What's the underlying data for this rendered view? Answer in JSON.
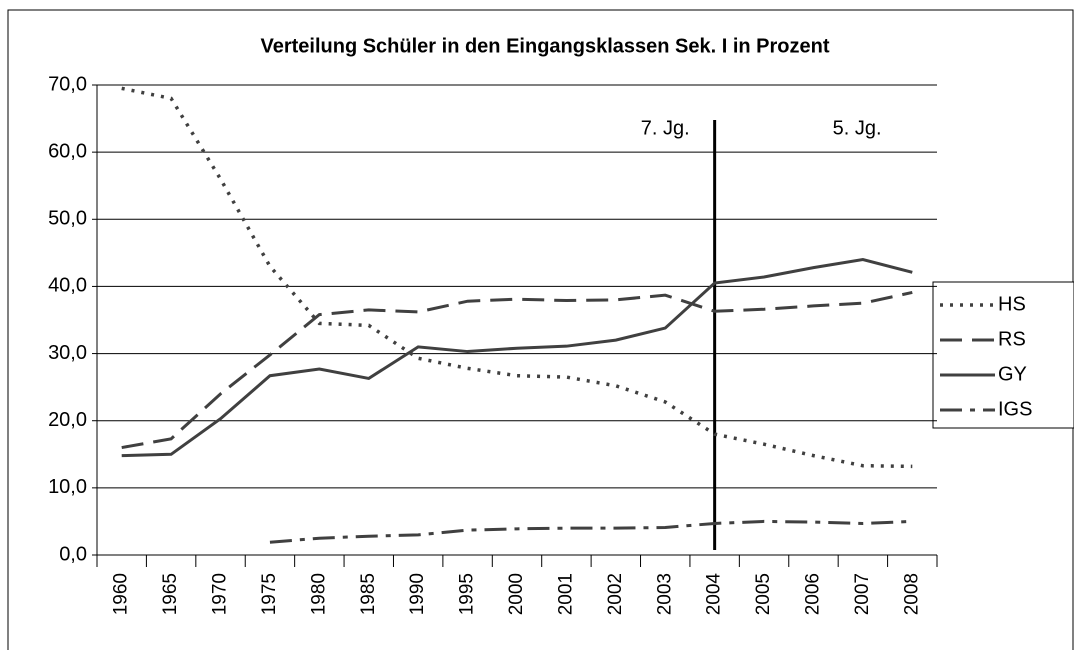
{
  "chart_data": {
    "type": "line",
    "title": "Verteilung Schüler in den Eingangsklassen Sek. I in Prozent",
    "categories": [
      "1960",
      "1965",
      "1970",
      "1975",
      "1980",
      "1985",
      "1990",
      "1995",
      "2000",
      "2001",
      "2002",
      "2003",
      "2004",
      "2005",
      "2006",
      "2007",
      "2008"
    ],
    "series": [
      {
        "name": "HS",
        "color": "#404040",
        "dash": "3,7",
        "values": [
          69.5,
          68,
          56,
          43,
          34.5,
          34.2,
          29.3,
          27.8,
          26.7,
          26.5,
          25.2,
          22.8,
          18,
          16.5,
          14.8,
          13.3,
          13.2
        ]
      },
      {
        "name": "RS",
        "color": "#404040",
        "dash": "22,10",
        "values": [
          16,
          17.3,
          24,
          29.8,
          35.8,
          36.5,
          36.2,
          37.8,
          38.1,
          37.9,
          38,
          38.7,
          36.3,
          36.6,
          37.1,
          37.5,
          39.1
        ]
      },
      {
        "name": "GY",
        "color": "#404040",
        "dash": "none",
        "values": [
          14.8,
          15,
          20.3,
          26.7,
          27.7,
          26.3,
          31,
          30.3,
          30.8,
          31.1,
          32,
          33.8,
          40.5,
          41.4,
          42.8,
          44,
          42.1
        ]
      },
      {
        "name": "IGS",
        "color": "#404040",
        "dash": "22,8,5,8",
        "values": [
          null,
          null,
          null,
          1.9,
          2.5,
          2.8,
          3,
          3.7,
          3.9,
          4,
          4,
          4.1,
          4.7,
          5,
          4.9,
          4.7,
          5
        ]
      }
    ],
    "ylim": [
      0,
      70
    ],
    "yticks": [
      {
        "value": 0,
        "label": "0,0"
      },
      {
        "value": 10,
        "label": "10,0"
      },
      {
        "value": 20,
        "label": "20,0"
      },
      {
        "value": 30,
        "label": "30,0"
      },
      {
        "value": 40,
        "label": "40,0"
      },
      {
        "value": 50,
        "label": "50,0"
      },
      {
        "value": 60,
        "label": "60,0"
      },
      {
        "value": 70,
        "label": "70,0"
      }
    ],
    "grid": true,
    "legend": "right",
    "divider": "2004",
    "annotations": [
      "7. Jg.",
      "5. Jg."
    ]
  }
}
